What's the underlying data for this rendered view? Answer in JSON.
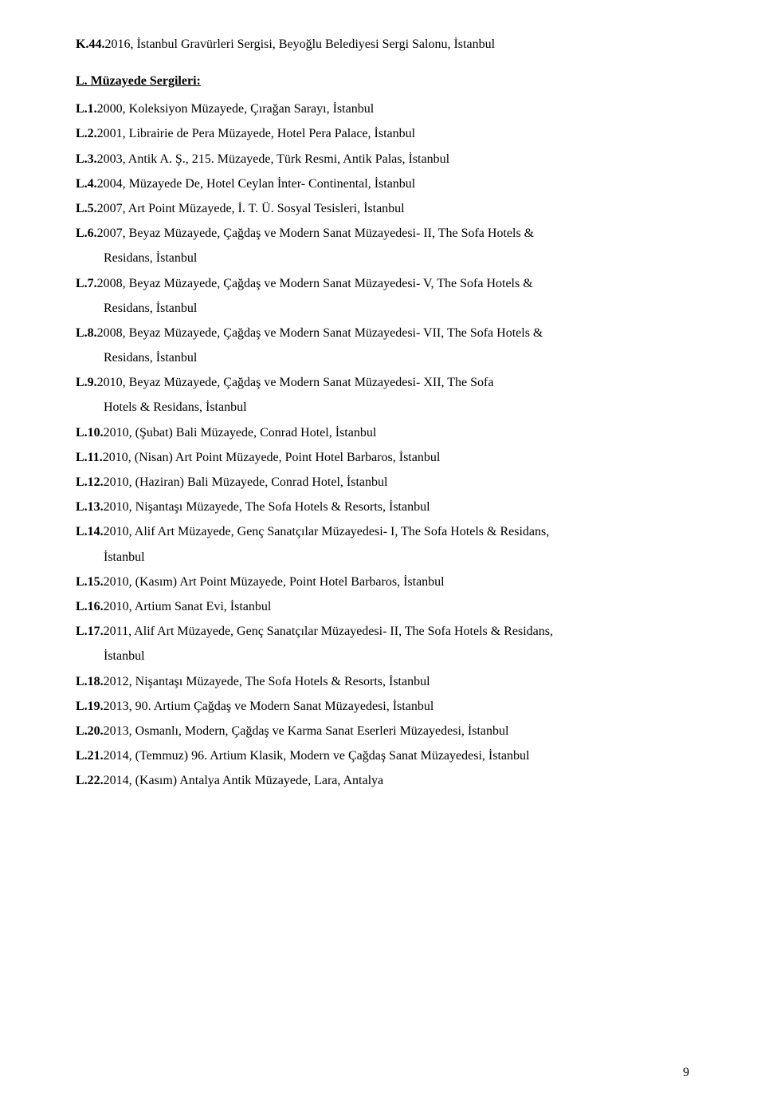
{
  "top_item": {
    "label": "K.44.",
    "text": " 2016, İstanbul Gravürleri Sergisi, Beyoğlu Belediyesi Sergi Salonu, İstanbul"
  },
  "section_header": {
    "prefix": "L. ",
    "title": "Müzayede Sergileri:"
  },
  "items": [
    {
      "label": "L.1.",
      "text": " 2000, Koleksiyon Müzayede, Çırağan Sarayı, İstanbul"
    },
    {
      "label": "L.2.",
      "text": " 2001, Librairie de Pera Müzayede, Hotel Pera Palace, İstanbul"
    },
    {
      "label": "L.3.",
      "text": " 2003, Antik A. Ş., 215. Müzayede, Türk Resmi, Antik Palas, İstanbul"
    },
    {
      "label": "L.4.",
      "text": " 2004, Müzayede De, Hotel Ceylan İnter- Continental, İstanbul"
    },
    {
      "label": "L.5.",
      "text": " 2007, Art Point Müzayede, İ. T. Ü. Sosyal Tesisleri, İstanbul"
    },
    {
      "label": "L.6.",
      "text": " 2007, Beyaz Müzayede, Çağdaş ve Modern Sanat Müzayedesi- II, The Sofa Hotels &",
      "cont": "Residans, İstanbul"
    },
    {
      "label": "L.7.",
      "text": " 2008, Beyaz Müzayede, Çağdaş ve Modern Sanat Müzayedesi- V, The Sofa Hotels &",
      "cont": "Residans, İstanbul"
    },
    {
      "label": "L.8.",
      "text": " 2008, Beyaz Müzayede, Çağdaş ve Modern Sanat Müzayedesi- VII, The Sofa Hotels &",
      "cont": "Residans, İstanbul"
    },
    {
      "label": "L.9.",
      "text": " 2010, Beyaz Müzayede, Çağdaş ve Modern Sanat Müzayedesi- XII, The Sofa",
      "cont": "Hotels & Residans, İstanbul"
    },
    {
      "label": "L.10.",
      "text": " 2010, (Şubat) Bali Müzayede, Conrad Hotel, İstanbul"
    },
    {
      "label": "L.11.",
      "text": " 2010, (Nisan) Art Point Müzayede, Point Hotel Barbaros, İstanbul"
    },
    {
      "label": "L.12.",
      "text": " 2010, (Haziran) Bali Müzayede, Conrad Hotel, İstanbul"
    },
    {
      "label": "L.13.",
      "text": " 2010, Nişantaşı Müzayede, The Sofa Hotels & Resorts, İstanbul"
    },
    {
      "label": "L.14.",
      "text": " 2010, Alif Art Müzayede, Genç Sanatçılar Müzayedesi- I, The Sofa Hotels & Residans,",
      "cont": "İstanbul"
    },
    {
      "label": "L.15.",
      "text": " 2010, (Kasım) Art Point Müzayede, Point Hotel Barbaros, İstanbul"
    },
    {
      "label": "L.16.",
      "text": " 2010, Artium Sanat Evi, İstanbul"
    },
    {
      "label": "L.17.",
      "text": " 2011, Alif Art Müzayede, Genç Sanatçılar Müzayedesi- II, The Sofa Hotels & Residans,",
      "cont": "İstanbul"
    },
    {
      "label": "L.18.",
      "text": " 2012, Nişantaşı Müzayede, The Sofa Hotels & Resorts, İstanbul"
    },
    {
      "label": "L.19.",
      "text": " 2013, 90. Artium Çağdaş ve Modern Sanat Müzayedesi, İstanbul"
    },
    {
      "label": "L.20.",
      "text": " 2013, Osmanlı, Modern, Çağdaş ve Karma Sanat Eserleri Müzayedesi, İstanbul"
    },
    {
      "label": "L.21.",
      "text": " 2014, (Temmuz) 96. Artium Klasik, Modern ve Çağdaş Sanat Müzayedesi, İstanbul"
    },
    {
      "label": "L.22.",
      "text": " 2014, (Kasım) Antalya Antik Müzayede, Lara, Antalya"
    }
  ],
  "page_number": "9"
}
